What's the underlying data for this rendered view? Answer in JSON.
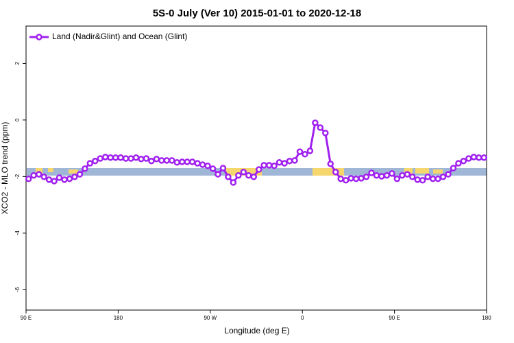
{
  "chart_data": {
    "type": "line",
    "title": "5S-0 July (Ver 10)   2015-01-01 to 2020-12-18",
    "x_label": "Longitude (deg E)",
    "y_label": "XCO2 - MLO trend (ppm)",
    "xlim": [
      90,
      540
    ],
    "ylim": [
      -6.72,
      3.32
    ],
    "xticks": [
      {
        "value": 90,
        "label": "90 E"
      },
      {
        "value": 180,
        "label": "180"
      },
      {
        "value": 270,
        "label": "90 W"
      },
      {
        "value": 360,
        "label": "0"
      },
      {
        "value": 450,
        "label": "90 E"
      },
      {
        "value": 540,
        "label": "180"
      }
    ],
    "yticks": [
      -6,
      -4,
      -2,
      0,
      2
    ],
    "legend": "top-left",
    "x": [
      92.5,
      97.5,
      102.5,
      107.5,
      112.5,
      117.5,
      122.5,
      127.5,
      132.5,
      137.5,
      142.5,
      147.5,
      152.5,
      157.5,
      162.5,
      167.5,
      172.5,
      177.5,
      182.5,
      187.5,
      192.5,
      197.5,
      202.5,
      207.5,
      212.5,
      217.5,
      222.5,
      227.5,
      232.5,
      237.5,
      242.5,
      247.5,
      252.5,
      257.5,
      262.5,
      267.5,
      272.5,
      277.5,
      282.5,
      287.5,
      292.5,
      297.5,
      302.5,
      307.5,
      312.5,
      317.5,
      322.5,
      327.5,
      332.5,
      337.5,
      342.5,
      347.5,
      352.5,
      357.5,
      362.5,
      367.5,
      372.5,
      377.5,
      382.5,
      387.5,
      392.5,
      397.5,
      402.5,
      407.5,
      412.5,
      417.5,
      422.5,
      427.5,
      432.5,
      437.5,
      442.5,
      447.5,
      452.5,
      457.5,
      462.5,
      467.5,
      472.5,
      477.5,
      482.5,
      487.5,
      492.5,
      497.5,
      502.5,
      507.5,
      512.5,
      517.5,
      522.5,
      527.5,
      532.5,
      537.5
    ],
    "series": [
      {
        "name": "Land (Nadir&Glint) and Ocean (Glint)",
        "color": "#a020f0",
        "values": [
          -2.08,
          -1.96,
          -1.92,
          -2.01,
          -2.11,
          -2.16,
          -2.04,
          -2.11,
          -2.08,
          -2.01,
          -1.92,
          -1.72,
          -1.53,
          -1.45,
          -1.36,
          -1.31,
          -1.33,
          -1.33,
          -1.33,
          -1.36,
          -1.36,
          -1.33,
          -1.38,
          -1.36,
          -1.45,
          -1.38,
          -1.43,
          -1.43,
          -1.43,
          -1.5,
          -1.48,
          -1.48,
          -1.48,
          -1.53,
          -1.58,
          -1.62,
          -1.72,
          -1.92,
          -1.7,
          -2.01,
          -2.21,
          -1.96,
          -1.84,
          -1.96,
          -2.01,
          -1.75,
          -1.6,
          -1.6,
          -1.62,
          -1.5,
          -1.53,
          -1.45,
          -1.43,
          -1.12,
          -1.21,
          -1.09,
          -0.1,
          -0.27,
          -0.46,
          -1.55,
          -1.84,
          -2.08,
          -2.13,
          -2.06,
          -2.08,
          -2.06,
          -2.01,
          -1.87,
          -1.96,
          -1.99,
          -1.96,
          -1.89,
          -2.08,
          -1.96,
          -1.92,
          -2.01,
          -2.11,
          -2.13,
          -2.01,
          -2.08,
          -2.08,
          -2.01,
          -1.92,
          -1.7,
          -1.53,
          -1.45,
          -1.36,
          -1.31,
          -1.33,
          -1.33
        ]
      }
    ]
  }
}
